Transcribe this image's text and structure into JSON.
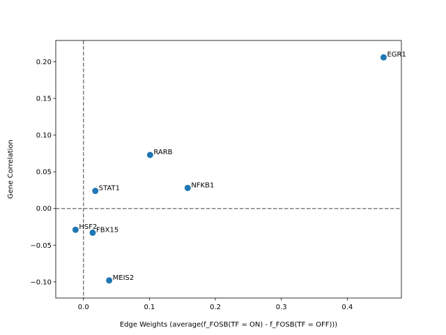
{
  "chart_data": {
    "type": "scatter",
    "xlabel": "Edge Weights (average(f_FOSB(TF = ON) - f_FOSB(TF = OFF)))",
    "ylabel": "Gene Correlation",
    "xlim": [
      -0.042,
      0.482
    ],
    "ylim": [
      -0.122,
      0.229
    ],
    "xticks": [
      0.0,
      0.1,
      0.2,
      0.3,
      0.4
    ],
    "xtick_labels": [
      "0.0",
      "0.1",
      "0.2",
      "0.3",
      "0.4"
    ],
    "yticks": [
      -0.1,
      -0.05,
      0.0,
      0.05,
      0.1,
      0.15,
      0.2
    ],
    "ytick_labels": [
      "−0.10",
      "−0.05",
      "0.00",
      "0.05",
      "0.10",
      "0.15",
      "0.20"
    ],
    "reference_lines": {
      "x": 0,
      "y": 0,
      "style": "dashed",
      "color": "#808080"
    },
    "grid": false,
    "marker_color": "#1f77b4",
    "points": [
      {
        "label": "EGR1",
        "x": 0.455,
        "y": 0.206
      },
      {
        "label": "RARB",
        "x": 0.101,
        "y": 0.073
      },
      {
        "label": "NFKB1",
        "x": 0.158,
        "y": 0.028
      },
      {
        "label": "STAT1",
        "x": 0.018,
        "y": 0.024
      },
      {
        "label": "HSF2",
        "x": -0.012,
        "y": -0.029
      },
      {
        "label": "FBX15",
        "x": 0.014,
        "y": -0.033
      },
      {
        "label": "MEIS2",
        "x": 0.039,
        "y": -0.098
      }
    ]
  }
}
